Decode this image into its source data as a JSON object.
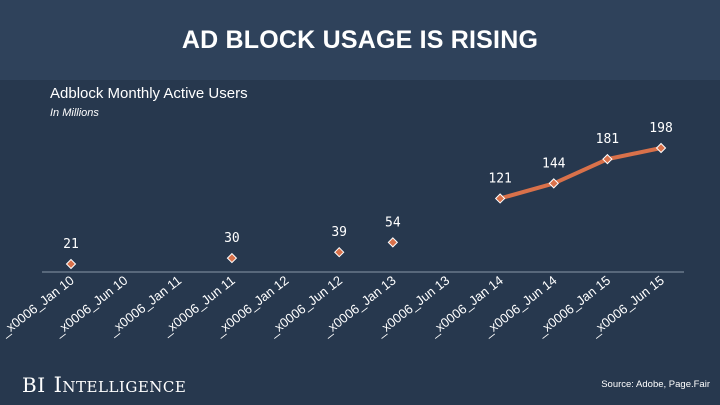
{
  "header": {
    "title": "AD BLOCK USAGE IS RISING"
  },
  "brand": {
    "bi": "BI",
    "name": "Intelligence"
  },
  "source": "Source: Adobe, Page.Fair",
  "colors": {
    "background": "#27384e",
    "title_band": "#2f425b",
    "series_line": "#d9714a",
    "point_marker": "#d9714a",
    "text": "#ffffff"
  },
  "chart_data": {
    "type": "line",
    "title": "Adblock Monthly Active Users",
    "subtitle": "In Millions",
    "categories": [
      "_x0006_Jan 10",
      "_x0006_Jun 10",
      "_x0006_Jan 11",
      "_x0006_Jun 11",
      "_x0006_Jan 12",
      "_x0006_Jun 12",
      "_x0006_Jan 13",
      "_x0006_Jun 13",
      "_x0006_Jan 14",
      "_x0006_Jun 14",
      "_x0006_Jan 15",
      "_x0006_Jun 15"
    ],
    "series": [
      {
        "name": "Adblock Monthly Active Users",
        "points": [
          {
            "category": "_x0006_Jan 10",
            "value": 21,
            "label": "21"
          },
          {
            "category": "_x0006_Jun 11",
            "value": 30,
            "label": "30"
          },
          {
            "category": "_x0006_Jun 12",
            "value": 39,
            "label": "39"
          },
          {
            "category": "_x0006_Jan 13",
            "value": 54,
            "label": "54"
          },
          {
            "category": "_x0006_Jan 14",
            "value": 121,
            "label": "121"
          },
          {
            "category": "_x0006_Jun 14",
            "value": 144,
            "label": "144"
          },
          {
            "category": "_x0006_Jan 15",
            "value": 181,
            "label": "181"
          },
          {
            "category": "_x0006_Jun 15",
            "value": 198,
            "label": "198"
          }
        ],
        "line_segments": [
          [
            "_x0006_Jan 14",
            "_x0006_Jun 14",
            "_x0006_Jan 15",
            "_x0006_Jun 15"
          ]
        ]
      }
    ],
    "xlabel": "",
    "ylabel": "",
    "ylim": [
      0,
      210
    ],
    "grid": false,
    "legend": "none"
  }
}
